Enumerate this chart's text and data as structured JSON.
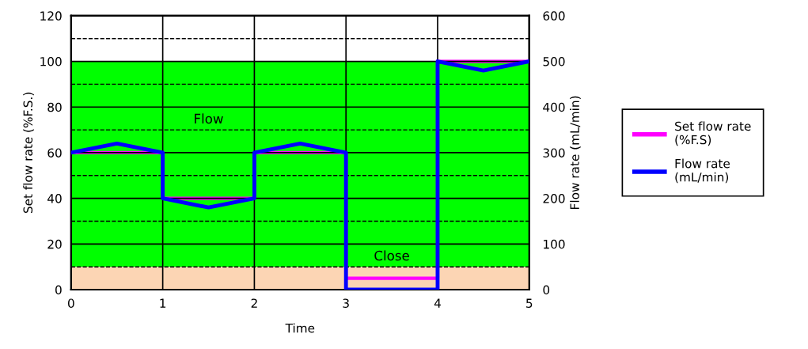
{
  "chart_data": {
    "type": "line",
    "xlabel": "Time",
    "ylabel": "Set flow rate (%F.S.)",
    "y2label": "Flow rate (mL/min)",
    "xlim": [
      0,
      5
    ],
    "xticks": [
      0,
      1,
      2,
      3,
      4,
      5
    ],
    "ylim": [
      0,
      120
    ],
    "yticks": [
      0,
      20,
      40,
      60,
      80,
      100,
      120
    ],
    "y2lim": [
      0,
      600
    ],
    "y2ticks": [
      0,
      100,
      200,
      300,
      400,
      500,
      600
    ],
    "grid": true,
    "legend": "right",
    "line_style": "solid",
    "marker": "none",
    "bands": [
      {
        "axis": "y",
        "from": 10,
        "to": 100,
        "color": "#00ff00",
        "label": "Flow"
      },
      {
        "axis": "y",
        "from": 0,
        "to": 10,
        "color": "#fcd5b4",
        "label": "Close"
      }
    ],
    "ref_lines": [
      {
        "axis": "y",
        "value": 10,
        "color": "#000000",
        "line_style": "dashed"
      },
      {
        "axis": "y",
        "value": 30,
        "color": "#000000",
        "line_style": "dashed"
      },
      {
        "axis": "y",
        "value": 50,
        "color": "#000000",
        "line_style": "dashed"
      },
      {
        "axis": "y",
        "value": 70,
        "color": "#000000",
        "line_style": "dashed"
      },
      {
        "axis": "y",
        "value": 90,
        "color": "#000000",
        "line_style": "dashed"
      },
      {
        "axis": "y",
        "value": 110,
        "color": "#000000",
        "line_style": "dashed"
      }
    ],
    "series": [
      {
        "name": "Set flow rate\n(%F.S)",
        "color": "#ff00ff",
        "x": [
          0,
          1,
          1,
          2,
          2,
          3,
          3,
          4,
          4,
          5
        ],
        "values": [
          60,
          60,
          40,
          40,
          60,
          60,
          5,
          5,
          100,
          100
        ]
      },
      {
        "name": "Flow rate\n(mL/min)",
        "color": "#0000ff",
        "axis": "y2",
        "x": [
          0,
          0.5,
          1,
          1,
          1.5,
          2,
          2,
          2.5,
          3,
          3,
          4,
          4,
          4.5,
          5
        ],
        "values": [
          300,
          320,
          300,
          200,
          180,
          200,
          300,
          320,
          300,
          0,
          0,
          500,
          480,
          500
        ]
      }
    ]
  }
}
